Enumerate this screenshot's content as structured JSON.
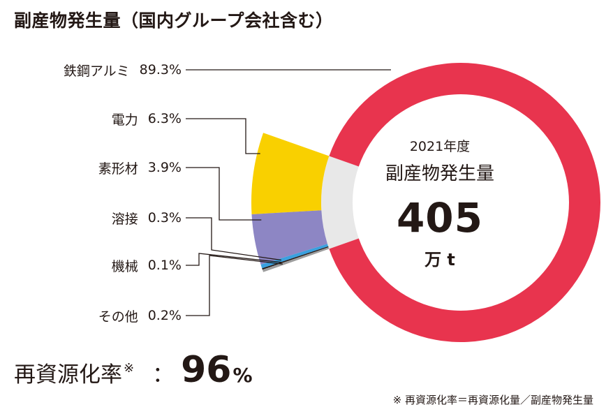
{
  "title": "副産物発生量（国内グループ会社含む）",
  "chart_data": {
    "type": "pie",
    "categories": [
      "鉄鋼アルミ",
      "電力",
      "素形材",
      "溶接",
      "機械",
      "その他"
    ],
    "values": [
      89.3,
      6.3,
      3.9,
      0.3,
      0.1,
      0.2
    ],
    "value_labels": [
      "89.3%",
      "6.3%",
      "3.9%",
      "0.3%",
      "0.1%",
      "0.2%"
    ],
    "colors": [
      "#e8344e",
      "#f9d000",
      "#8d86c4",
      "#3aa0de",
      "#231815",
      "#9e9e9e"
    ],
    "center": {
      "year": "2021年度",
      "name": "副産物発生量",
      "value": "405",
      "unit": "万 t"
    }
  },
  "recycling": {
    "label": "再資源化率",
    "mark": "※",
    "colon": "：",
    "value": "96",
    "percent": "%"
  },
  "footnote": "※  再資源化率＝再資源化量／副産物発生量"
}
